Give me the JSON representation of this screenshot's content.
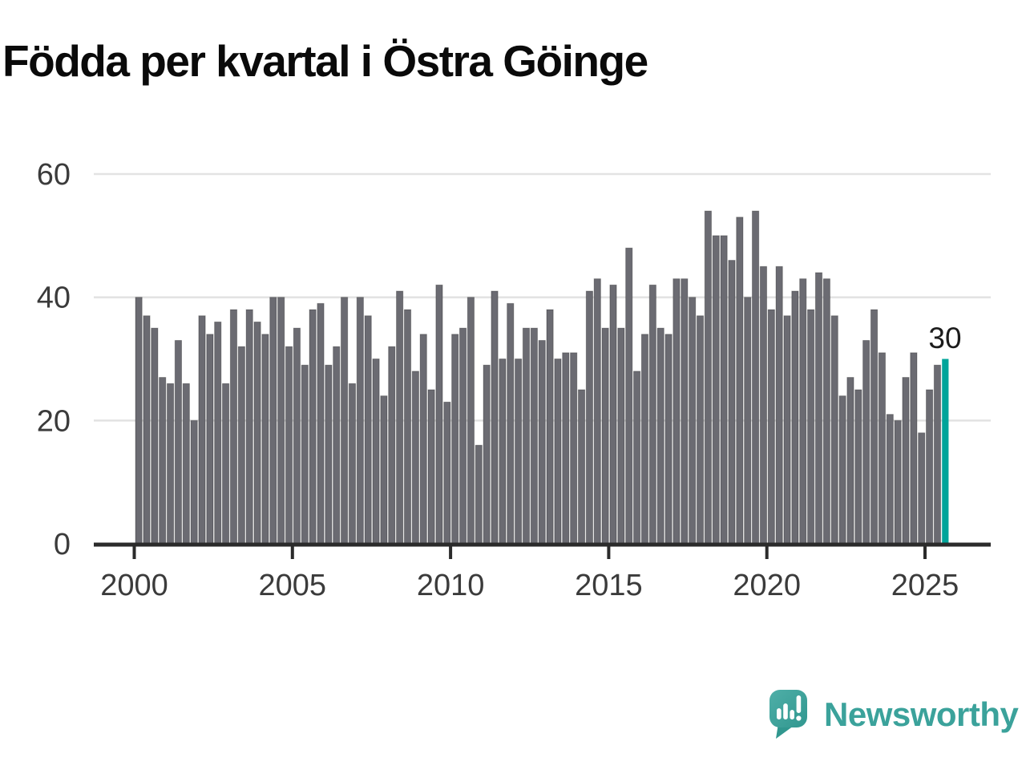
{
  "title": "Födda per kvartal i Östra Göinge",
  "chart_data": {
    "type": "bar",
    "title": "Födda per kvartal i Östra Göinge",
    "xlabel": "",
    "ylabel": "",
    "ylim": [
      0,
      60
    ],
    "yticks": [
      0,
      20,
      40,
      60
    ],
    "xticks": [
      2000,
      2005,
      2010,
      2015,
      2020,
      2025
    ],
    "grid": "horizontal",
    "legend": "none",
    "bar_color": "#6b6b72",
    "categories": [
      "2000 Q1",
      "2000 Q2",
      "2000 Q3",
      "2000 Q4",
      "2001 Q1",
      "2001 Q2",
      "2001 Q3",
      "2001 Q4",
      "2002 Q1",
      "2002 Q2",
      "2002 Q3",
      "2002 Q4",
      "2003 Q1",
      "2003 Q2",
      "2003 Q3",
      "2003 Q4",
      "2004 Q1",
      "2004 Q2",
      "2004 Q3",
      "2004 Q4",
      "2005 Q1",
      "2005 Q2",
      "2005 Q3",
      "2005 Q4",
      "2006 Q1",
      "2006 Q2",
      "2006 Q3",
      "2006 Q4",
      "2007 Q1",
      "2007 Q2",
      "2007 Q3",
      "2007 Q4",
      "2008 Q1",
      "2008 Q2",
      "2008 Q3",
      "2008 Q4",
      "2009 Q1",
      "2009 Q2",
      "2009 Q3",
      "2009 Q4",
      "2010 Q1",
      "2010 Q2",
      "2010 Q3",
      "2010 Q4",
      "2011 Q1",
      "2011 Q2",
      "2011 Q3",
      "2011 Q4",
      "2012 Q1",
      "2012 Q2",
      "2012 Q3",
      "2012 Q4",
      "2013 Q1",
      "2013 Q2",
      "2013 Q3",
      "2013 Q4",
      "2014 Q1",
      "2014 Q2",
      "2014 Q3",
      "2014 Q4",
      "2015 Q1",
      "2015 Q2",
      "2015 Q3",
      "2015 Q4",
      "2016 Q1",
      "2016 Q2",
      "2016 Q3",
      "2016 Q4",
      "2017 Q1",
      "2017 Q2",
      "2017 Q3",
      "2017 Q4",
      "2018 Q1",
      "2018 Q2",
      "2018 Q3",
      "2018 Q4",
      "2019 Q1",
      "2019 Q2",
      "2019 Q3",
      "2019 Q4",
      "2020 Q1",
      "2020 Q2",
      "2020 Q3",
      "2020 Q4",
      "2021 Q1",
      "2021 Q2",
      "2021 Q3",
      "2021 Q4",
      "2022 Q1",
      "2022 Q2",
      "2022 Q3",
      "2022 Q4",
      "2023 Q1",
      "2023 Q2",
      "2023 Q3",
      "2023 Q4",
      "2024 Q1",
      "2024 Q2",
      "2024 Q3",
      "2024 Q4",
      "2025 Q1",
      "2025 Q2",
      "2025 Q3"
    ],
    "values": [
      40,
      37,
      35,
      27,
      26,
      33,
      26,
      20,
      37,
      34,
      36,
      26,
      38,
      32,
      38,
      36,
      34,
      40,
      40,
      32,
      35,
      29,
      38,
      39,
      29,
      32,
      40,
      26,
      40,
      37,
      30,
      24,
      32,
      41,
      38,
      28,
      34,
      25,
      42,
      23,
      34,
      35,
      40,
      16,
      29,
      41,
      30,
      39,
      30,
      35,
      35,
      33,
      38,
      30,
      31,
      31,
      25,
      41,
      43,
      35,
      42,
      35,
      48,
      28,
      34,
      42,
      35,
      34,
      43,
      43,
      40,
      37,
      54,
      50,
      50,
      46,
      53,
      40,
      54,
      45,
      38,
      45,
      37,
      41,
      43,
      38,
      44,
      43,
      37,
      24,
      27,
      25,
      33,
      38,
      31,
      21,
      20,
      27,
      31,
      18,
      25,
      29,
      30
    ],
    "highlight": {
      "index": 102,
      "category": "2025 Q3",
      "value": 30,
      "label": "30",
      "color": "#00a49a"
    }
  },
  "colors": {
    "grid": "#e3e3e3",
    "axis": "#2b2b2b",
    "tick_label": "#3b3b3b",
    "annotation": "#1c1c1c",
    "brand_teal": "#3ba29b"
  },
  "footer": {
    "brand": "Newsworthy",
    "logo_icon": "speech-bubble-bar-chart-icon"
  }
}
